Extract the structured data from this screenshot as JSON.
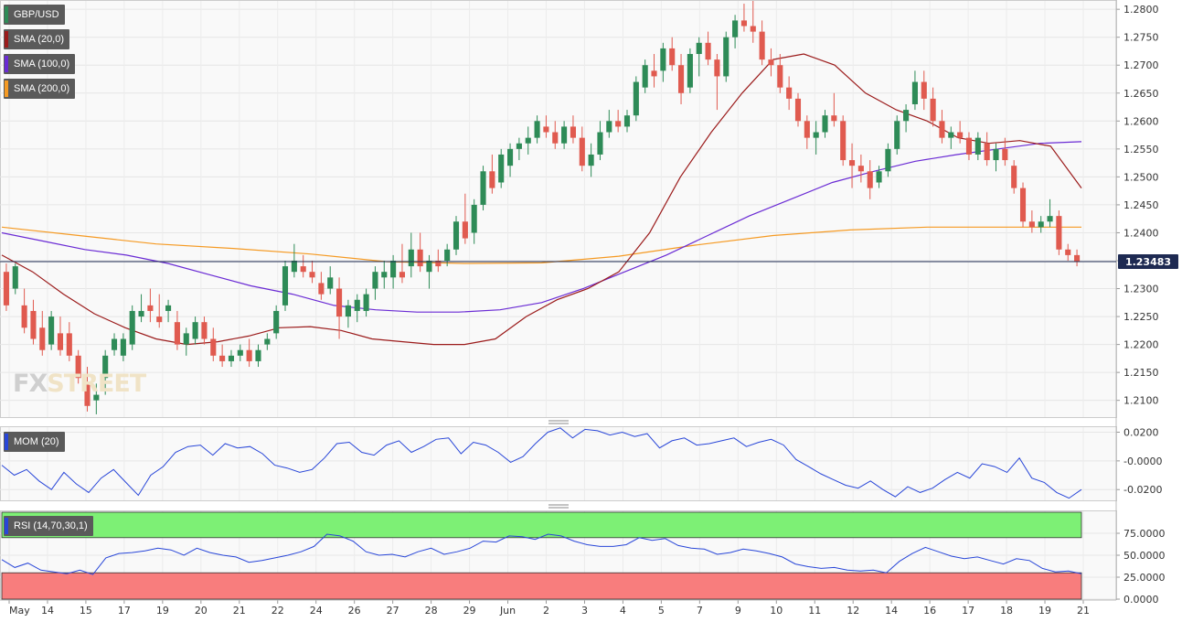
{
  "chart_data": [
    {
      "type": "candlestick",
      "symbol": "GBP/USD",
      "ylim": [
        1.207,
        1.2815
      ],
      "yticks": [
        "1.2800",
        "1.2750",
        "1.2700",
        "1.2650",
        "1.2600",
        "1.2550",
        "1.2500",
        "1.2450",
        "1.2400",
        "1.2350",
        "1.2300",
        "1.2250",
        "1.2200",
        "1.2150",
        "1.2100"
      ],
      "last_price": 1.23483,
      "last_price_label": "1.23483",
      "xtick_labels": [
        "May",
        "14",
        "15",
        "17",
        "19",
        "20",
        "21",
        "22",
        "24",
        "26",
        "27",
        "28",
        "29",
        "Jun",
        "2",
        "3",
        "4",
        "5",
        "7",
        "9",
        "10",
        "11",
        "12",
        "14",
        "16",
        "17",
        "18",
        "19",
        "21"
      ],
      "legend": [
        "GBP/USD",
        "SMA (20,0)",
        "SMA (100,0)",
        "SMA (200,0)"
      ],
      "colors": {
        "up": "#2e8b57",
        "down": "#e05a4f",
        "sma20": "#9b1b1b",
        "sma100": "#6a2bd4",
        "sma200": "#f59a23",
        "last": "#1e2a52"
      },
      "sma20": [
        1.236,
        1.233,
        1.229,
        1.2255,
        1.223,
        1.221,
        1.22,
        1.2205,
        1.2215,
        1.223,
        1.2232,
        1.2225,
        1.221,
        1.2205,
        1.22,
        1.22,
        1.221,
        1.225,
        1.228,
        1.23,
        1.233,
        1.24,
        1.25,
        1.258,
        1.265,
        1.271,
        1.272,
        1.27,
        1.265,
        1.262,
        1.26,
        1.257,
        1.256,
        1.2565,
        1.2555,
        1.248
      ],
      "sma100": [
        1.24,
        1.2385,
        1.237,
        1.236,
        1.2345,
        1.2325,
        1.2305,
        1.229,
        1.227,
        1.2262,
        1.2258,
        1.2258,
        1.2262,
        1.2275,
        1.23,
        1.233,
        1.236,
        1.2395,
        1.243,
        1.246,
        1.249,
        1.251,
        1.2528,
        1.254,
        1.255,
        1.256,
        1.2563
      ],
      "sma200": [
        1.241,
        1.2395,
        1.238,
        1.2372,
        1.2362,
        1.2348,
        1.2345,
        1.2346,
        1.2358,
        1.2378,
        1.2395,
        1.2405,
        1.241,
        1.241,
        1.241
      ],
      "candles": [
        [
          1.233,
          1.2345,
          1.226,
          1.227
        ],
        [
          1.23,
          1.2345,
          1.229,
          1.234
        ],
        [
          1.227,
          1.23,
          1.222,
          1.223
        ],
        [
          1.226,
          1.228,
          1.22,
          1.221
        ],
        [
          1.223,
          1.226,
          1.218,
          1.219
        ],
        [
          1.22,
          1.226,
          1.219,
          1.225
        ],
        [
          1.222,
          1.225,
          1.218,
          1.219
        ],
        [
          1.222,
          1.224,
          1.217,
          1.218
        ],
        [
          1.218,
          1.219,
          1.213,
          1.214
        ],
        [
          1.213,
          1.216,
          1.208,
          1.209
        ],
        [
          1.21,
          1.213,
          1.2075,
          1.211
        ],
        [
          1.214,
          1.219,
          1.211,
          1.218
        ],
        [
          1.219,
          1.222,
          1.218,
          1.221
        ],
        [
          1.218,
          1.222,
          1.217,
          1.221
        ],
        [
          1.22,
          1.227,
          1.219,
          1.226
        ],
        [
          1.225,
          1.229,
          1.224,
          1.226
        ],
        [
          1.227,
          1.23,
          1.224,
          1.226
        ],
        [
          1.225,
          1.229,
          1.223,
          1.224
        ],
        [
          1.226,
          1.228,
          1.224,
          1.227
        ],
        [
          1.224,
          1.226,
          1.219,
          1.22
        ],
        [
          1.22,
          1.223,
          1.218,
          1.222
        ],
        [
          1.221,
          1.225,
          1.22,
          1.224
        ],
        [
          1.224,
          1.225,
          1.22,
          1.221
        ],
        [
          1.221,
          1.223,
          1.217,
          1.218
        ],
        [
          1.218,
          1.22,
          1.216,
          1.217
        ],
        [
          1.217,
          1.219,
          1.216,
          1.218
        ],
        [
          1.218,
          1.22,
          1.217,
          1.219
        ],
        [
          1.219,
          1.221,
          1.216,
          1.217
        ],
        [
          1.217,
          1.22,
          1.216,
          1.219
        ],
        [
          1.22,
          1.222,
          1.219,
          1.221
        ],
        [
          1.222,
          1.227,
          1.221,
          1.226
        ],
        [
          1.227,
          1.235,
          1.226,
          1.234
        ],
        [
          1.233,
          1.238,
          1.232,
          1.235
        ],
        [
          1.234,
          1.236,
          1.232,
          1.233
        ],
        [
          1.233,
          1.235,
          1.231,
          1.232
        ],
        [
          1.231,
          1.233,
          1.228,
          1.229
        ],
        [
          1.23,
          1.234,
          1.229,
          1.232
        ],
        [
          1.23,
          1.232,
          1.221,
          1.225
        ],
        [
          1.225,
          1.228,
          1.223,
          1.227
        ],
        [
          1.226,
          1.229,
          1.224,
          1.228
        ],
        [
          1.226,
          1.23,
          1.225,
          1.229
        ],
        [
          1.23,
          1.234,
          1.228,
          1.233
        ],
        [
          1.232,
          1.235,
          1.23,
          1.233
        ],
        [
          1.232,
          1.236,
          1.23,
          1.235
        ],
        [
          1.233,
          1.238,
          1.231,
          1.232
        ],
        [
          1.234,
          1.24,
          1.232,
          1.237
        ],
        [
          1.237,
          1.24,
          1.233,
          1.234
        ],
        [
          1.233,
          1.236,
          1.23,
          1.235
        ],
        [
          1.235,
          1.237,
          1.233,
          1.234
        ],
        [
          1.235,
          1.238,
          1.234,
          1.237
        ],
        [
          1.237,
          1.243,
          1.236,
          1.242
        ],
        [
          1.242,
          1.247,
          1.238,
          1.239
        ],
        [
          1.24,
          1.246,
          1.238,
          1.245
        ],
        [
          1.245,
          1.252,
          1.244,
          1.251
        ],
        [
          1.251,
          1.254,
          1.247,
          1.248
        ],
        [
          1.249,
          1.255,
          1.248,
          1.254
        ],
        [
          1.252,
          1.256,
          1.25,
          1.255
        ],
        [
          1.255,
          1.257,
          1.253,
          1.256
        ],
        [
          1.256,
          1.259,
          1.254,
          1.257
        ],
        [
          1.257,
          1.261,
          1.256,
          1.26
        ],
        [
          1.259,
          1.261,
          1.257,
          1.258
        ],
        [
          1.258,
          1.26,
          1.255,
          1.256
        ],
        [
          1.256,
          1.26,
          1.255,
          1.259
        ],
        [
          1.259,
          1.261,
          1.256,
          1.257
        ],
        [
          1.257,
          1.259,
          1.251,
          1.252
        ],
        [
          1.252,
          1.256,
          1.25,
          1.254
        ],
        [
          1.254,
          1.26,
          1.253,
          1.258
        ],
        [
          1.258,
          1.262,
          1.257,
          1.26
        ],
        [
          1.26,
          1.262,
          1.258,
          1.259
        ],
        [
          1.259,
          1.262,
          1.258,
          1.261
        ],
        [
          1.261,
          1.268,
          1.26,
          1.267
        ],
        [
          1.266,
          1.271,
          1.265,
          1.27
        ],
        [
          1.269,
          1.272,
          1.266,
          1.268
        ],
        [
          1.269,
          1.274,
          1.267,
          1.273
        ],
        [
          1.273,
          1.275,
          1.269,
          1.27
        ],
        [
          1.27,
          1.272,
          1.263,
          1.265
        ],
        [
          1.266,
          1.273,
          1.265,
          1.272
        ],
        [
          1.272,
          1.275,
          1.268,
          1.274
        ],
        [
          1.274,
          1.276,
          1.27,
          1.271
        ],
        [
          1.271,
          1.272,
          1.262,
          1.268
        ],
        [
          1.268,
          1.276,
          1.267,
          1.275
        ],
        [
          1.275,
          1.279,
          1.273,
          1.278
        ],
        [
          1.278,
          1.281,
          1.276,
          1.277
        ],
        [
          1.277,
          1.2815,
          1.274,
          1.276
        ],
        [
          1.276,
          1.278,
          1.27,
          1.271
        ],
        [
          1.271,
          1.273,
          1.268,
          1.27
        ],
        [
          1.27,
          1.272,
          1.265,
          1.266
        ],
        [
          1.266,
          1.268,
          1.262,
          1.264
        ],
        [
          1.264,
          1.265,
          1.259,
          1.26
        ],
        [
          1.26,
          1.261,
          1.255,
          1.257
        ],
        [
          1.257,
          1.26,
          1.254,
          1.258
        ],
        [
          1.258,
          1.262,
          1.257,
          1.261
        ],
        [
          1.261,
          1.265,
          1.259,
          1.26
        ],
        [
          1.26,
          1.261,
          1.252,
          1.253
        ],
        [
          1.253,
          1.256,
          1.248,
          1.252
        ],
        [
          1.252,
          1.254,
          1.249,
          1.251
        ],
        [
          1.251,
          1.253,
          1.246,
          1.248
        ],
        [
          1.249,
          1.252,
          1.248,
          1.251
        ],
        [
          1.251,
          1.256,
          1.25,
          1.255
        ],
        [
          1.255,
          1.261,
          1.254,
          1.26
        ],
        [
          1.26,
          1.263,
          1.258,
          1.262
        ],
        [
          1.263,
          1.269,
          1.262,
          1.267
        ],
        [
          1.267,
          1.269,
          1.262,
          1.264
        ],
        [
          1.264,
          1.266,
          1.259,
          1.26
        ],
        [
          1.26,
          1.262,
          1.256,
          1.257
        ],
        [
          1.257,
          1.259,
          1.255,
          1.258
        ],
        [
          1.258,
          1.26,
          1.256,
          1.257
        ],
        [
          1.257,
          1.258,
          1.253,
          1.254
        ],
        [
          1.254,
          1.258,
          1.253,
          1.257
        ],
        [
          1.256,
          1.258,
          1.252,
          1.253
        ],
        [
          1.253,
          1.256,
          1.251,
          1.255
        ],
        [
          1.255,
          1.257,
          1.252,
          1.253
        ],
        [
          1.252,
          1.253,
          1.247,
          1.248
        ],
        [
          1.248,
          1.249,
          1.241,
          1.242
        ],
        [
          1.242,
          1.244,
          1.24,
          1.241
        ],
        [
          1.241,
          1.243,
          1.24,
          1.242
        ],
        [
          1.242,
          1.246,
          1.241,
          1.243
        ],
        [
          1.243,
          1.244,
          1.236,
          1.237
        ],
        [
          1.237,
          1.238,
          1.235,
          1.236
        ],
        [
          1.236,
          1.237,
          1.234,
          1.2348
        ]
      ]
    },
    {
      "type": "line",
      "title": "MOM (20)",
      "color": "#2846d8",
      "ylim": [
        -0.0275,
        0.0235
      ],
      "yticks": [
        "0.0200",
        "-0.0000",
        "-0.0200"
      ],
      "values": [
        -0.003,
        -0.01,
        -0.006,
        -0.014,
        -0.02,
        -0.008,
        -0.016,
        -0.022,
        -0.012,
        -0.006,
        -0.015,
        -0.024,
        -0.01,
        -0.004,
        0.006,
        0.01,
        0.011,
        0.004,
        0.012,
        0.009,
        0.01,
        0.005,
        -0.003,
        -0.005,
        -0.008,
        -0.006,
        0.002,
        0.012,
        0.013,
        0.006,
        0.004,
        0.011,
        0.014,
        0.006,
        0.01,
        0.015,
        0.016,
        0.005,
        0.013,
        0.011,
        0.006,
        -0.001,
        0.003,
        0.012,
        0.02,
        0.023,
        0.016,
        0.022,
        0.021,
        0.018,
        0.02,
        0.017,
        0.019,
        0.009,
        0.014,
        0.016,
        0.011,
        0.012,
        0.014,
        0.016,
        0.01,
        0.013,
        0.015,
        0.011,
        0.001,
        -0.004,
        -0.009,
        -0.013,
        -0.017,
        -0.019,
        -0.014,
        -0.02,
        -0.025,
        -0.018,
        -0.022,
        -0.019,
        -0.013,
        -0.008,
        -0.012,
        -0.002,
        -0.004,
        -0.008,
        0.002,
        -0.012,
        -0.015,
        -0.022,
        -0.026,
        -0.02
      ]
    },
    {
      "type": "line",
      "title": "RSI (14,70,30,1)",
      "color": "#2846d8",
      "ylim": [
        0,
        100
      ],
      "overbought": 70,
      "oversold": 30,
      "zone_colors": {
        "overbought": "#7df075",
        "oversold": "#f87d7d"
      },
      "yticks": [
        "75.0000",
        "50.0000",
        "25.0000",
        "0.0000"
      ],
      "values": [
        45,
        36,
        41,
        33,
        31,
        29,
        33,
        28,
        47,
        52,
        53,
        55,
        58,
        56,
        50,
        58,
        53,
        50,
        48,
        42,
        44,
        47,
        50,
        54,
        60,
        74,
        72,
        66,
        54,
        50,
        51,
        48,
        54,
        58,
        51,
        54,
        58,
        66,
        65,
        72,
        71,
        68,
        74,
        72,
        66,
        62,
        60,
        60,
        62,
        70,
        67,
        69,
        61,
        58,
        57,
        51,
        53,
        57,
        55,
        52,
        48,
        40,
        37,
        35,
        36,
        33,
        32,
        33,
        30,
        43,
        52,
        59,
        54,
        49,
        46,
        48,
        44,
        40,
        46,
        44,
        35,
        31,
        32,
        29
      ]
    }
  ]
}
